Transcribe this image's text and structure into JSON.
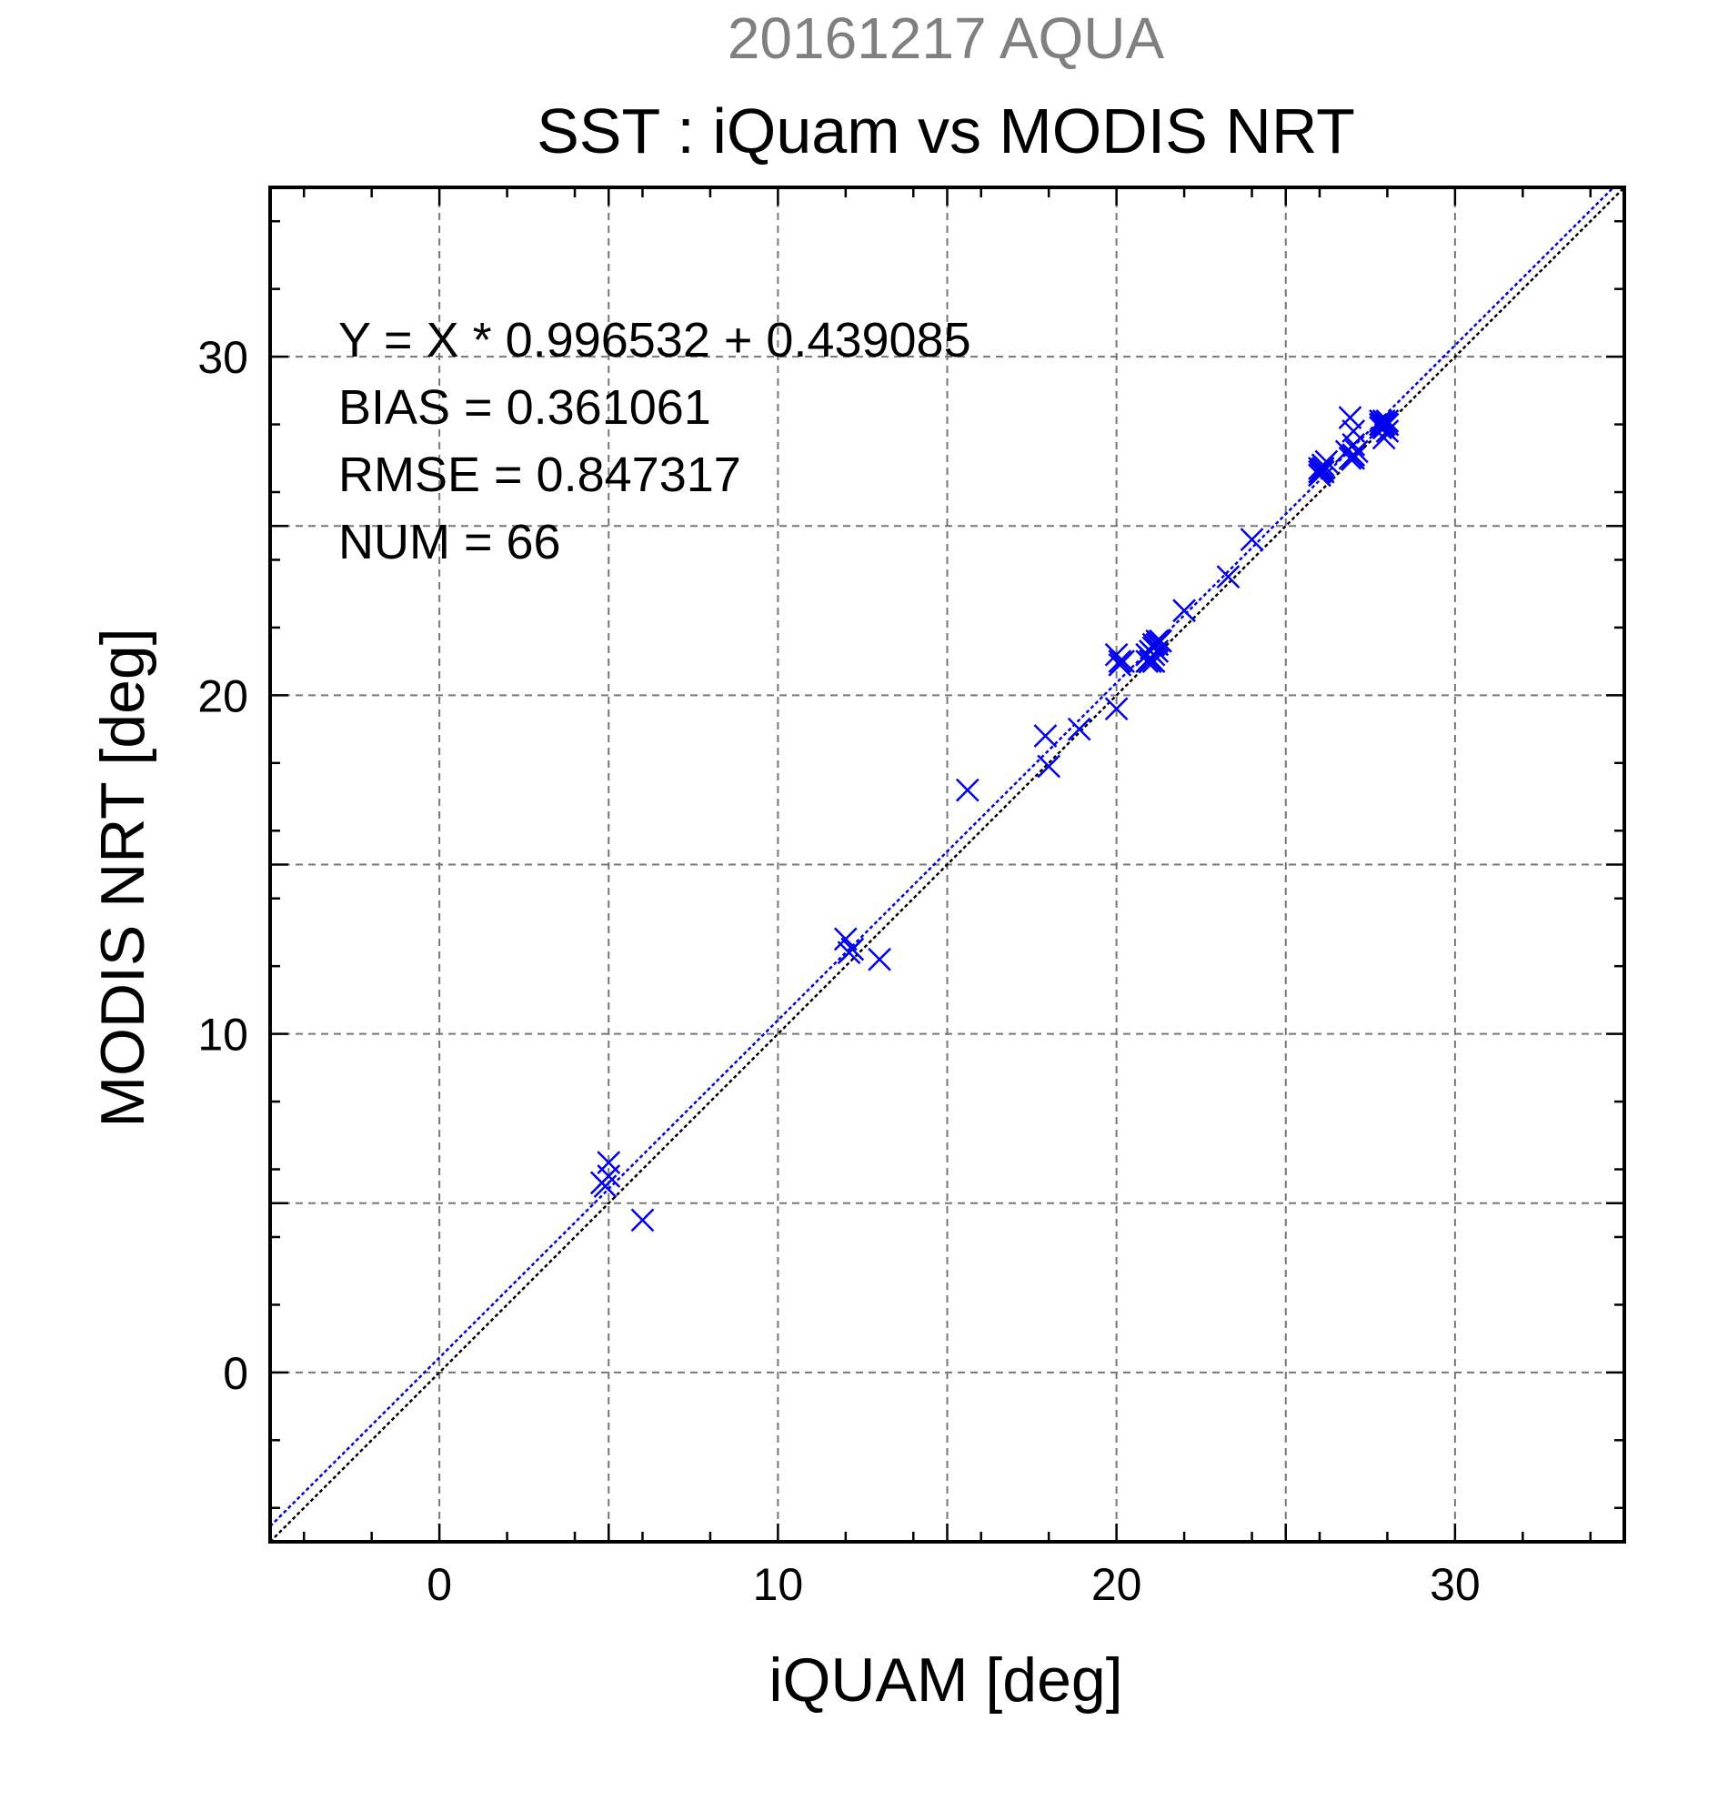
{
  "chart_data": {
    "type": "scatter",
    "title": "20161217 AQUA",
    "subtitle": "SST : iQuam vs MODIS NRT",
    "xlabel": "iQUAM [deg]",
    "ylabel": "MODIS NRT [deg]",
    "xlim": [
      -5,
      35
    ],
    "ylim": [
      -5,
      35
    ],
    "xticks": [
      0,
      10,
      20,
      30
    ],
    "yticks": [
      0,
      10,
      20,
      30
    ],
    "grid": true,
    "stats": [
      "Y = X * 0.996532 + 0.439085",
      "BIAS = 0.361061",
      "RMSE = 0.847317",
      "NUM = 66"
    ],
    "colors": {
      "points": "#0000ee",
      "fit_line": "#0000ee",
      "identity_line": "#000000",
      "title_top": "#808080"
    },
    "lines": [
      {
        "kind": "identity",
        "slope": 1.0,
        "intercept": 0.0
      },
      {
        "kind": "fit",
        "slope": 0.996532,
        "intercept": 0.439085
      }
    ],
    "series": [
      {
        "marker": "x",
        "x": [
          4.8,
          5.0,
          5.0,
          4.9,
          6.0,
          12.0,
          12.1,
          12.2,
          13.0,
          15.6,
          17.9,
          18.0,
          18.9,
          20.0,
          20.0,
          20.1,
          20.1,
          20.9,
          21.0,
          21.0,
          21.1,
          21.1,
          21.2,
          21.0,
          21.1,
          21.2,
          21.3,
          20.9,
          21.1,
          22.0,
          23.3,
          24.0,
          26.0,
          26.0,
          26.1,
          26.1,
          26.0,
          26.1,
          26.2,
          26.0,
          26.1,
          26.8,
          26.9,
          27.0,
          27.0,
          27.1,
          26.9,
          27.0,
          27.0,
          27.8,
          27.8,
          27.9,
          27.9,
          28.0,
          28.0,
          27.8,
          27.9,
          28.0,
          27.9,
          28.0,
          27.8,
          27.9,
          28.0,
          21.0,
          21.2,
          20.2
        ],
        "y": [
          5.6,
          6.2,
          5.8,
          5.5,
          4.5,
          12.8,
          12.4,
          12.5,
          12.2,
          17.2,
          18.8,
          17.9,
          19.0,
          21.2,
          19.6,
          20.9,
          21.0,
          21.0,
          21.3,
          21.1,
          21.2,
          21.5,
          21.6,
          21.0,
          21.4,
          21.5,
          21.6,
          21.2,
          21.0,
          22.5,
          23.5,
          24.6,
          26.5,
          26.7,
          26.6,
          26.8,
          26.6,
          26.7,
          26.9,
          26.5,
          26.6,
          27.2,
          27.0,
          27.1,
          27.4,
          27.2,
          28.2,
          27.8,
          27.0,
          28.0,
          28.1,
          28.0,
          27.9,
          28.0,
          28.1,
          27.9,
          27.6,
          28.0,
          28.1,
          27.8,
          28.0,
          27.9,
          28.0,
          21.1,
          21.3,
          21.0
        ]
      }
    ]
  }
}
